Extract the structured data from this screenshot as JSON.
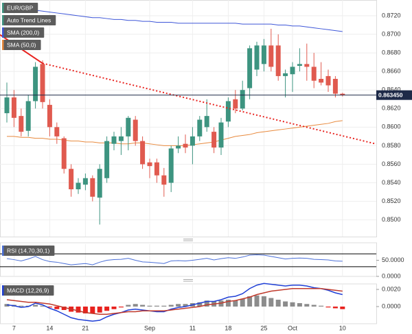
{
  "chart_data": [
    {
      "type": "candlestick",
      "title": "EUR/GBP",
      "categories": [
        null,
        "7",
        null,
        null,
        null,
        null,
        "14",
        null,
        null,
        null,
        null,
        "21",
        null,
        null,
        null,
        null,
        null,
        null,
        null,
        null,
        "Sep",
        null,
        null,
        null,
        null,
        null,
        "11",
        null,
        null,
        null,
        null,
        "18",
        null,
        null,
        null,
        null,
        "25",
        null,
        null,
        null,
        "Oct",
        null,
        null,
        null,
        null,
        null,
        null,
        "10"
      ],
      "open": [
        0.8615,
        0.8632,
        0.8612,
        0.8596,
        0.8628,
        0.8668,
        0.8624,
        0.86,
        0.8588,
        0.8555,
        0.8533,
        0.8538,
        0.8545,
        0.8524,
        0.8545,
        0.8582,
        0.8585,
        0.859,
        0.8608,
        0.8585,
        0.8562,
        0.8562,
        0.8548,
        0.854,
        0.8577,
        0.8582,
        0.858,
        0.859,
        0.86,
        0.8595,
        0.8578,
        0.8606,
        0.863,
        0.862,
        0.8642,
        0.8662,
        0.8668,
        0.8688,
        0.8688,
        0.8655,
        0.8657,
        0.8666,
        0.8668,
        0.8665,
        0.8652,
        0.8655,
        0.8652,
        0.8636
      ],
      "high": [
        0.8648,
        0.864,
        0.862,
        0.8635,
        0.867,
        0.8672,
        0.863,
        0.8605,
        0.859,
        0.856,
        0.8545,
        0.855,
        0.8548,
        0.856,
        0.859,
        0.8595,
        0.86,
        0.8612,
        0.8612,
        0.859,
        0.8566,
        0.8566,
        0.8556,
        0.858,
        0.859,
        0.8592,
        0.86,
        0.8612,
        0.863,
        0.86,
        0.861,
        0.8632,
        0.864,
        0.865,
        0.8688,
        0.8692,
        0.8695,
        0.8706,
        0.87,
        0.8662,
        0.867,
        0.8685,
        0.869,
        0.868,
        0.867,
        0.8662,
        0.8655,
        0.8637
      ],
      "low": [
        0.8605,
        0.86,
        0.859,
        0.859,
        0.862,
        0.862,
        0.859,
        0.8582,
        0.855,
        0.8525,
        0.8528,
        0.8532,
        0.852,
        0.8495,
        0.854,
        0.8575,
        0.857,
        0.8575,
        0.858,
        0.8555,
        0.8545,
        0.854,
        0.8525,
        0.853,
        0.8572,
        0.8572,
        0.856,
        0.8585,
        0.8595,
        0.8572,
        0.857,
        0.86,
        0.8615,
        0.8618,
        0.863,
        0.8655,
        0.866,
        0.866,
        0.865,
        0.8632,
        0.8638,
        0.866,
        0.865,
        0.8642,
        0.8645,
        0.8638,
        0.8632,
        0.8633
      ],
      "close": [
        0.8632,
        0.861,
        0.8595,
        0.8628,
        0.8665,
        0.8627,
        0.86,
        0.859,
        0.8555,
        0.8533,
        0.854,
        0.8545,
        0.8525,
        0.8555,
        0.8585,
        0.859,
        0.859,
        0.861,
        0.8585,
        0.856,
        0.8558,
        0.8548,
        0.8538,
        0.8577,
        0.858,
        0.8578,
        0.859,
        0.8608,
        0.8612,
        0.8578,
        0.8605,
        0.8628,
        0.862,
        0.864,
        0.8685,
        0.8688,
        0.8688,
        0.8665,
        0.8655,
        0.8658,
        0.8665,
        0.8668,
        0.8665,
        0.865,
        0.8648,
        0.8645,
        0.8636,
        0.86345
      ],
      "up_color": "#3d9480",
      "down_color": "#e05a4f",
      "series": [
        {
          "name": "SMA (200,0)",
          "color": "#3c55d8",
          "values": [
            0.873,
            0.8729,
            0.8728,
            0.8727,
            0.8726,
            0.8725,
            0.8724,
            0.8723,
            0.8722,
            0.8721,
            0.872,
            0.8719,
            0.8718,
            0.8718,
            0.8717,
            0.8716,
            0.8716,
            0.8715,
            0.8715,
            0.8714,
            0.8714,
            0.8713,
            0.8713,
            0.8713,
            0.8712,
            0.8712,
            0.8712,
            0.8712,
            0.8712,
            0.8712,
            0.8712,
            0.8712,
            0.8712,
            0.8711,
            0.8711,
            0.8711,
            0.8711,
            0.8711,
            0.871,
            0.871,
            0.8709,
            0.8709,
            0.8708,
            0.8707,
            0.8706,
            0.8705,
            0.8704,
            0.8703
          ]
        },
        {
          "name": "SMA (50,0)",
          "color": "#e8893c",
          "values": [
            0.859,
            0.859,
            0.8589,
            0.8589,
            0.8588,
            0.8588,
            0.8587,
            0.8587,
            0.8586,
            0.8585,
            0.8585,
            0.8584,
            0.8584,
            0.8583,
            0.8583,
            0.8583,
            0.8582,
            0.8582,
            0.8583,
            0.8583,
            0.8582,
            0.8581,
            0.858,
            0.858,
            0.858,
            0.858,
            0.8581,
            0.8582,
            0.8583,
            0.8584,
            0.8586,
            0.8588,
            0.859,
            0.8591,
            0.8592,
            0.8594,
            0.8595,
            0.8596,
            0.8597,
            0.8598,
            0.8599,
            0.86,
            0.8601,
            0.8602,
            0.8603,
            0.8604,
            0.8606,
            0.8607
          ]
        }
      ],
      "trend_line": {
        "name": "Auto Trend Lines",
        "color": "#e8221e",
        "x": [
          0,
          5,
          47
        ],
        "values": [
          0.86946,
          0.86688,
          0.85906
        ]
      },
      "last_price": 0.86345,
      "last_price_label": "0.863450",
      "last_price_color": "#1e2a48",
      "ylim": [
        0.8482,
        0.8737
      ],
      "yticks": [
        {
          "value": 0.85,
          "label": "0.8500"
        },
        {
          "value": 0.852,
          "label": "0.8520"
        },
        {
          "value": 0.854,
          "label": "0.8540"
        },
        {
          "value": 0.856,
          "label": "0.8560"
        },
        {
          "value": 0.858,
          "label": "0.8580"
        },
        {
          "value": 0.86,
          "label": "0.8600"
        },
        {
          "value": 0.862,
          "label": "0.8620"
        },
        {
          "value": 0.864,
          "label": "0.8640"
        },
        {
          "value": 0.866,
          "label": "0.8660"
        },
        {
          "value": 0.868,
          "label": "0.8680"
        },
        {
          "value": 0.87,
          "label": "0.8700"
        },
        {
          "value": 0.872,
          "label": "0.8720"
        }
      ],
      "grid": true
    },
    {
      "type": "line",
      "title": "RSI (14,70,30,1)",
      "series": [
        {
          "color": "#4a6fd8",
          "values": [
            55,
            52,
            48,
            54,
            62,
            52,
            46,
            44,
            40,
            36,
            38,
            40,
            36,
            44,
            50,
            52,
            53,
            56,
            50,
            45,
            44,
            42,
            40,
            48,
            49,
            48,
            50,
            53,
            56,
            51,
            55,
            58,
            56,
            60,
            66,
            67,
            66,
            62,
            58,
            54,
            56,
            57,
            56,
            53,
            52,
            51,
            48,
            47
          ]
        }
      ],
      "levels": [
        70,
        30
      ],
      "level_color": "#000000",
      "ylim": [
        0,
        100
      ],
      "yticks": [
        {
          "value": 50,
          "label": "50.0000"
        },
        {
          "value": 0,
          "label": "0.0000"
        }
      ]
    },
    {
      "type": "macd",
      "title": "MACD (12,26,9)",
      "histogram": {
        "pos_color": "#8c8c8c",
        "neg_color": "#e8221e",
        "values": [
          0.0003,
          0.0002,
          0.0001,
          0.0001,
          0.0002,
          0.0001,
          -0.0001,
          -0.0003,
          -0.0004,
          -0.0006,
          -0.0007,
          -0.0008,
          -0.0008,
          -0.0007,
          -0.0005,
          -0.0003,
          -0.0001,
          0.0002,
          0.0003,
          0.0002,
          0.0001,
          0.0001,
          0.0001,
          0.0002,
          0.0003,
          0.0003,
          0.0004,
          0.0005,
          0.0007,
          0.0006,
          0.0007,
          0.0008,
          0.0007,
          0.0009,
          0.0012,
          0.0013,
          0.0012,
          0.001,
          0.0008,
          0.0006,
          0.0005,
          0.0004,
          0.0003,
          0.0002,
          0.0001,
          -0.0001,
          -0.0002,
          -0.0003
        ]
      },
      "series": [
        {
          "color": "#1f3fd6",
          "values": [
            0.0002,
            0.0001,
            -0.0001,
            0.0,
            0.0004,
            0.0002,
            -0.0002,
            -0.0005,
            -0.0009,
            -0.0013,
            -0.0015,
            -0.0016,
            -0.0017,
            -0.0016,
            -0.0012,
            -0.0009,
            -0.0007,
            -0.0004,
            -0.0003,
            -0.0004,
            -0.0005,
            -0.0006,
            -0.0006,
            -0.0003,
            -0.0001,
            0.0,
            0.0002,
            0.0004,
            0.0006,
            0.0006,
            0.0008,
            0.0011,
            0.0012,
            0.0015,
            0.0021,
            0.0025,
            0.0027,
            0.0026,
            0.0025,
            0.0024,
            0.0025,
            0.0025,
            0.0024,
            0.0022,
            0.0021,
            0.0019,
            0.0016,
            0.0014
          ]
        },
        {
          "color": "#c0392b",
          "values": [
            0.0008,
            0.0007,
            0.0006,
            0.0005,
            0.0005,
            0.0004,
            0.0003,
            0.0001,
            -0.0001,
            -0.0003,
            -0.0005,
            -0.0007,
            -0.0008,
            -0.0009,
            -0.0009,
            -0.0008,
            -0.0007,
            -0.0006,
            -0.0006,
            -0.0005,
            -0.0005,
            -0.0005,
            -0.0005,
            -0.0004,
            -0.0003,
            -0.0002,
            -0.0001,
            0.0,
            0.0002,
            0.0003,
            0.0004,
            0.0006,
            0.0007,
            0.0009,
            0.0011,
            0.0014,
            0.0016,
            0.0018,
            0.0019,
            0.002,
            0.0021,
            0.0021,
            0.0021,
            0.0021,
            0.0021,
            0.002,
            0.0019,
            0.0018
          ]
        }
      ],
      "ylim": [
        -0.002,
        0.00256
      ],
      "yticks": [
        {
          "value": 0.002,
          "label": "0.0020"
        },
        {
          "value": 0,
          "label": "0.0000"
        }
      ]
    }
  ]
}
